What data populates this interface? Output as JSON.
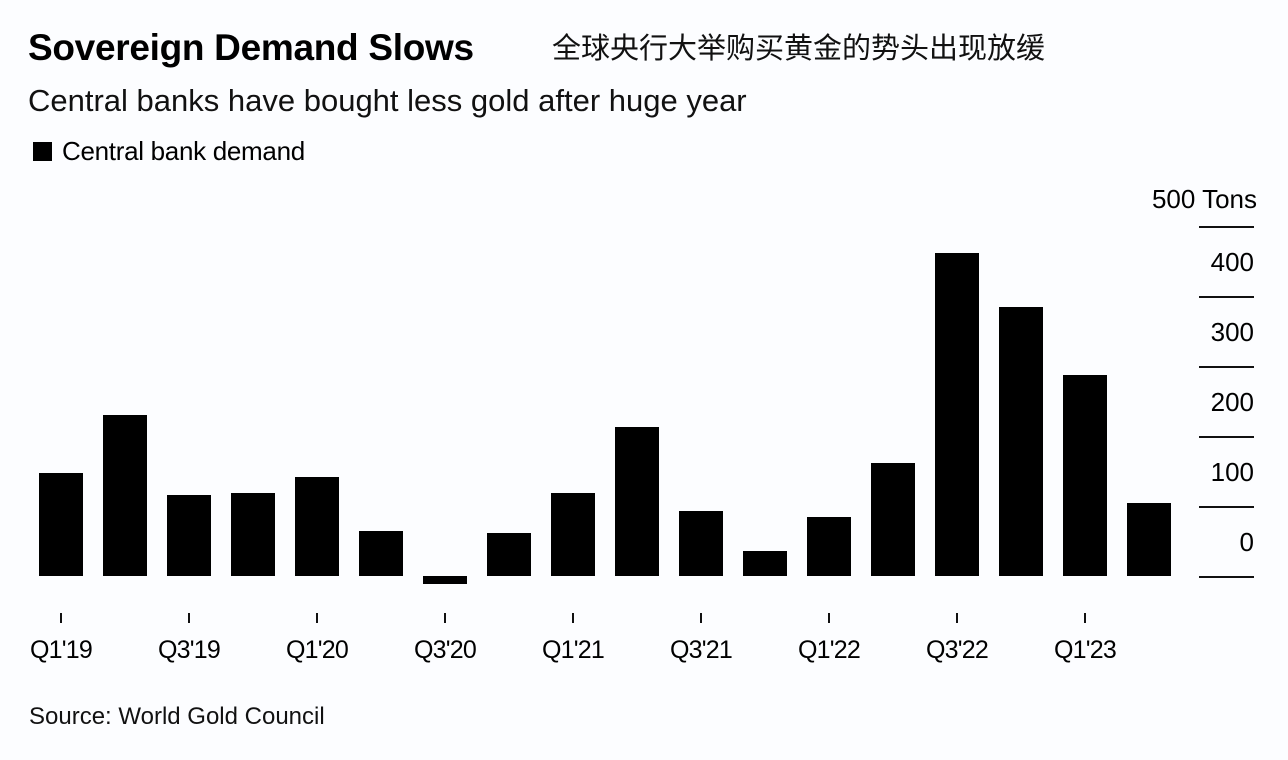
{
  "header": {
    "title": "Sovereign Demand Slows",
    "title_cn": "全球央行大举购买黄金的势头出现放缓",
    "subtitle": "Central banks have bought less gold after huge year"
  },
  "legend": {
    "items": [
      {
        "label": "Central bank demand",
        "color": "#000000"
      }
    ]
  },
  "axis": {
    "unit_label": "500 Tons",
    "y_ticks": [
      "400",
      "300",
      "200",
      "100",
      "0"
    ],
    "x_ticks": [
      "Q1'19",
      "Q3'19",
      "Q1'20",
      "Q3'20",
      "Q1'21",
      "Q3'21",
      "Q1'22",
      "Q3'22",
      "Q1'23"
    ]
  },
  "footer": {
    "source": "Source: World Gold Council"
  },
  "chart_data": {
    "type": "bar",
    "title": "Sovereign Demand Slows",
    "subtitle": "Central banks have bought less gold after huge year",
    "xlabel": "",
    "ylabel": "Tons",
    "ylim": [
      -20,
      500
    ],
    "y_ticks": [
      0,
      100,
      200,
      300,
      400,
      500
    ],
    "y_axis_position": "right",
    "grid": false,
    "legend_position": "top-left",
    "categories": [
      "Q1'19",
      "Q2'19",
      "Q3'19",
      "Q4'19",
      "Q1'20",
      "Q2'20",
      "Q3'20",
      "Q4'20",
      "Q1'21",
      "Q2'21",
      "Q3'21",
      "Q4'21",
      "Q1'22",
      "Q2'22",
      "Q3'22",
      "Q4'22",
      "Q1'23",
      "Q2'23"
    ],
    "series": [
      {
        "name": "Central bank demand",
        "color": "#000000",
        "values": [
          147,
          230,
          116,
          119,
          141,
          64,
          -12,
          61,
          119,
          213,
          93,
          36,
          84,
          161,
          461,
          384,
          287,
          104
        ]
      }
    ],
    "source": "Source: World Gold Council"
  }
}
